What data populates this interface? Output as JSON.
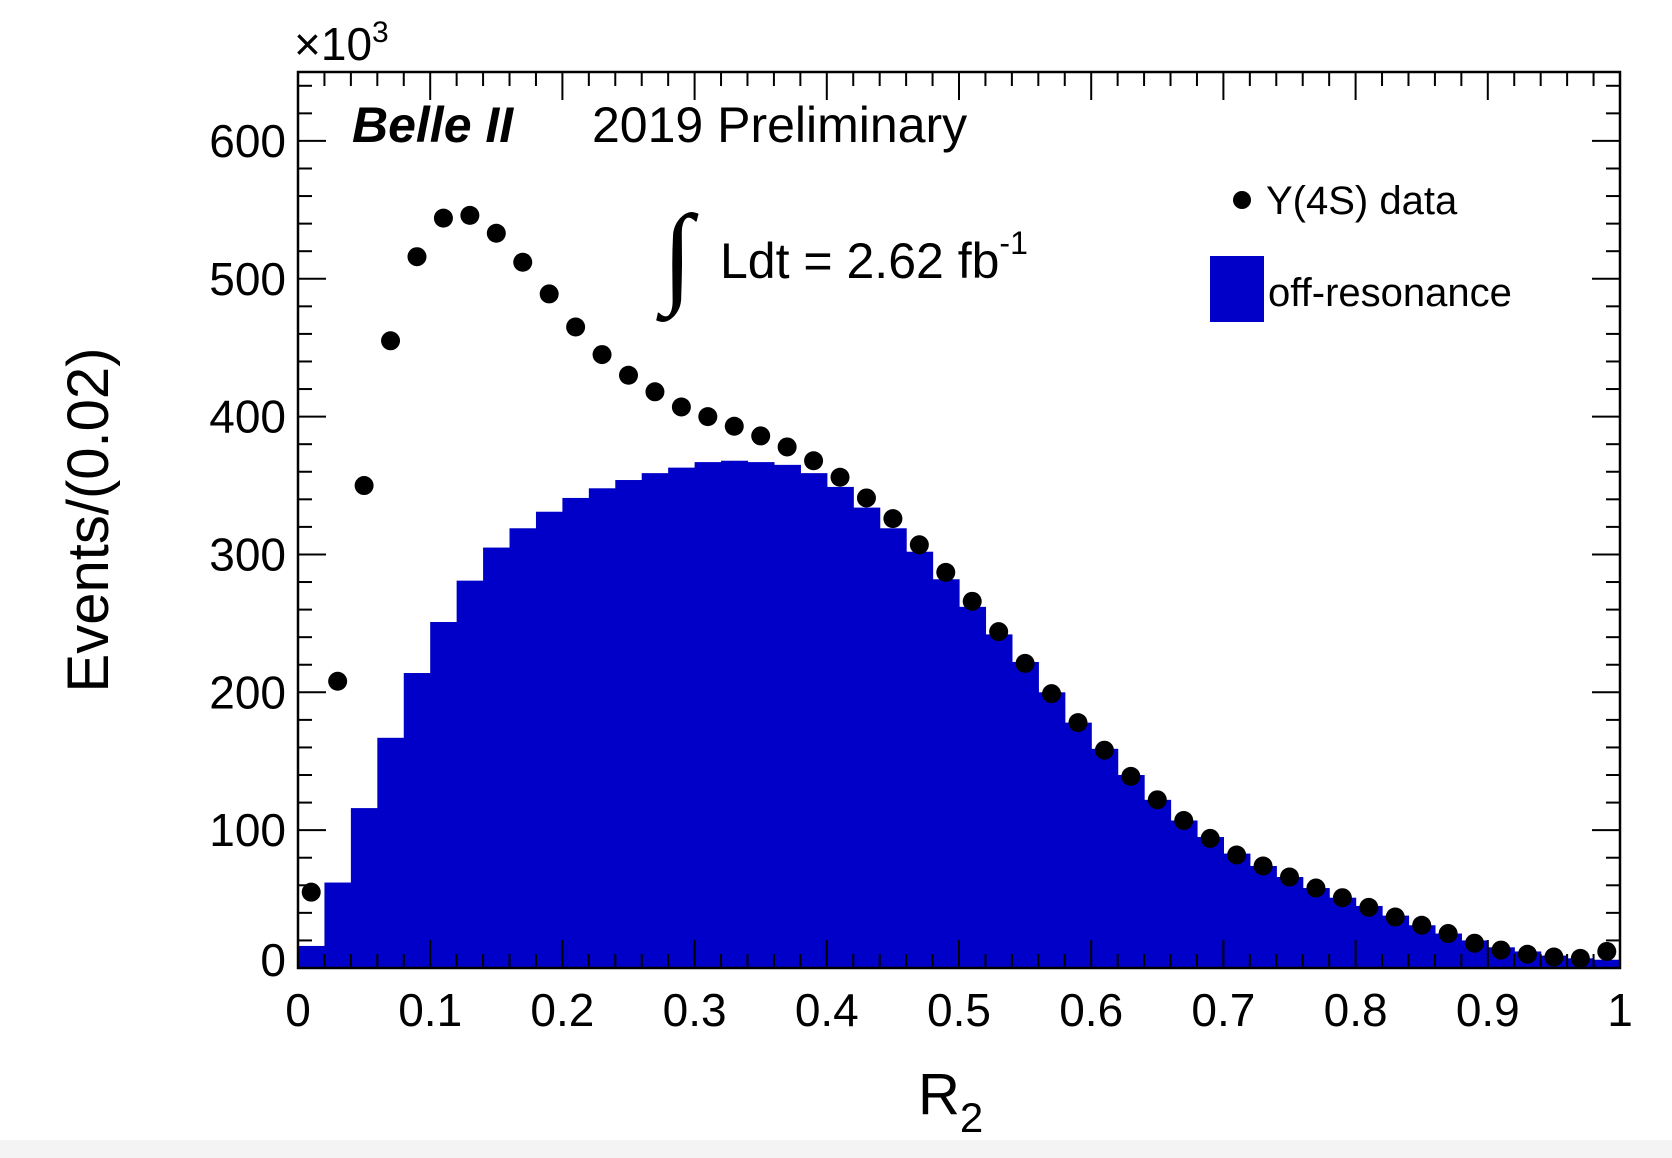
{
  "chart_data": {
    "type": "bar",
    "title": "",
    "xlabel": "R",
    "xlabel_subscript": "2",
    "ylabel": "Events/(0.02)",
    "y_multiplier_base": "×10",
    "y_multiplier_exp": "3",
    "xlim": [
      0,
      1
    ],
    "ylim": [
      0,
      650
    ],
    "x_ticks": [
      "0",
      "0.1",
      "0.2",
      "0.3",
      "0.4",
      "0.5",
      "0.6",
      "0.7",
      "0.8",
      "0.9",
      "1"
    ],
    "y_ticks": [
      "0",
      "100",
      "200",
      "300",
      "400",
      "500",
      "600"
    ],
    "annotations": {
      "experiment": "Belle II",
      "status": "2019 Preliminary",
      "integral_symbol": "∫",
      "lumi_text": "Ldt = 2.62 fb",
      "lumi_exp": "-1"
    },
    "legend": {
      "position": "top-right",
      "entries": [
        {
          "label": "Υ(4S) data",
          "style": "marker"
        },
        {
          "label": "off-resonance",
          "style": "fill"
        }
      ]
    },
    "colors": {
      "histogram": "#0000c8",
      "data": "#000000"
    },
    "bin_width": 0.02,
    "series": [
      {
        "name": "off-resonance",
        "kind": "histogram",
        "bin_edges_start": 0,
        "values": [
          16,
          62,
          116,
          167,
          214,
          251,
          281,
          305,
          319,
          331,
          341,
          348,
          354,
          359,
          363,
          367,
          368,
          367,
          365,
          359,
          349,
          334,
          319,
          302,
          282,
          262,
          242,
          222,
          200,
          178,
          159,
          140,
          122,
          107,
          95,
          83,
          74,
          66,
          58,
          51,
          45,
          38,
          31,
          25,
          20,
          15,
          12,
          9,
          7,
          6
        ]
      },
      {
        "name": "Υ(4S) data",
        "kind": "points",
        "x": [
          0.01,
          0.03,
          0.05,
          0.07,
          0.09,
          0.11,
          0.13,
          0.15,
          0.17,
          0.19,
          0.21,
          0.23,
          0.25,
          0.27,
          0.29,
          0.31,
          0.33,
          0.35,
          0.37,
          0.39,
          0.41,
          0.43,
          0.45,
          0.47,
          0.49,
          0.51,
          0.53,
          0.55,
          0.57,
          0.59,
          0.61,
          0.63,
          0.65,
          0.67,
          0.69,
          0.71,
          0.73,
          0.75,
          0.77,
          0.79,
          0.81,
          0.83,
          0.85,
          0.87,
          0.89,
          0.91,
          0.93,
          0.95,
          0.97,
          0.99
        ],
        "values": [
          55,
          208,
          350,
          455,
          516,
          544,
          546,
          533,
          512,
          489,
          465,
          445,
          430,
          418,
          407,
          400,
          393,
          386,
          378,
          368,
          356,
          341,
          326,
          307,
          287,
          266,
          244,
          221,
          199,
          178,
          158,
          139,
          122,
          107,
          94,
          82,
          74,
          66,
          58,
          51,
          44,
          37,
          31,
          25,
          18,
          13,
          10,
          8,
          7,
          12
        ]
      }
    ]
  }
}
